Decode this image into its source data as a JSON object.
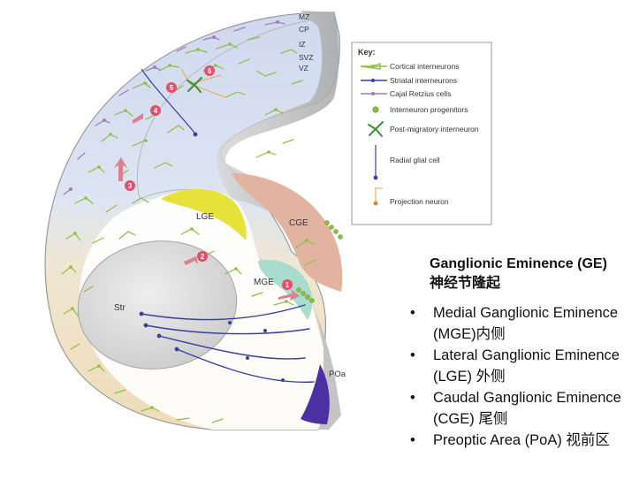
{
  "layers": [
    "MZ",
    "CP",
    "IZ",
    "SVZ",
    "VZ"
  ],
  "regions": {
    "lge": "LGE",
    "cge": "CGE",
    "mge": "MGE",
    "str": "Str",
    "poa": "POa"
  },
  "key": {
    "title": "Key:",
    "items": [
      {
        "label": "Cortical interneurons",
        "icon": "green-neuron"
      },
      {
        "label": "Striatal interneurons",
        "icon": "blue-neuron"
      },
      {
        "label": "Cajal  Retzius cells",
        "icon": "purple-neuron"
      },
      {
        "label": "Interneuron progenitors",
        "icon": "progenitor-dot"
      },
      {
        "label": "Post-migratory interneuron",
        "icon": "post-migratory-neuron"
      },
      {
        "label": "Radial glial cell",
        "icon": "radial-glial-cell"
      },
      {
        "label": "Projection neuron",
        "icon": "projection-neuron"
      }
    ]
  },
  "steps": [
    "1",
    "2",
    "3",
    "4",
    "5",
    "6"
  ],
  "side_panel": {
    "title": "Ganglionic Eminence (GE)",
    "subtitle": "神经节隆起",
    "bullets": [
      "Medial Ganglionic Eminence (MGE)内侧",
      "Lateral Ganglionic Eminence (LGE) 外侧",
      "Caudal Ganglionic Eminence (CGE) 尾侧",
      "Preoptic Area (PoA) 视前区"
    ]
  },
  "colors": {
    "cortical": "#8dbf3f",
    "striatal": "#3a3f9c",
    "cajal": "#a37fb5",
    "lge": "#e6e23a",
    "cge": "#e3b3a2",
    "mge": "#a9dccd",
    "poa": "#4b2fa3",
    "step_marker": "#e0506a"
  }
}
